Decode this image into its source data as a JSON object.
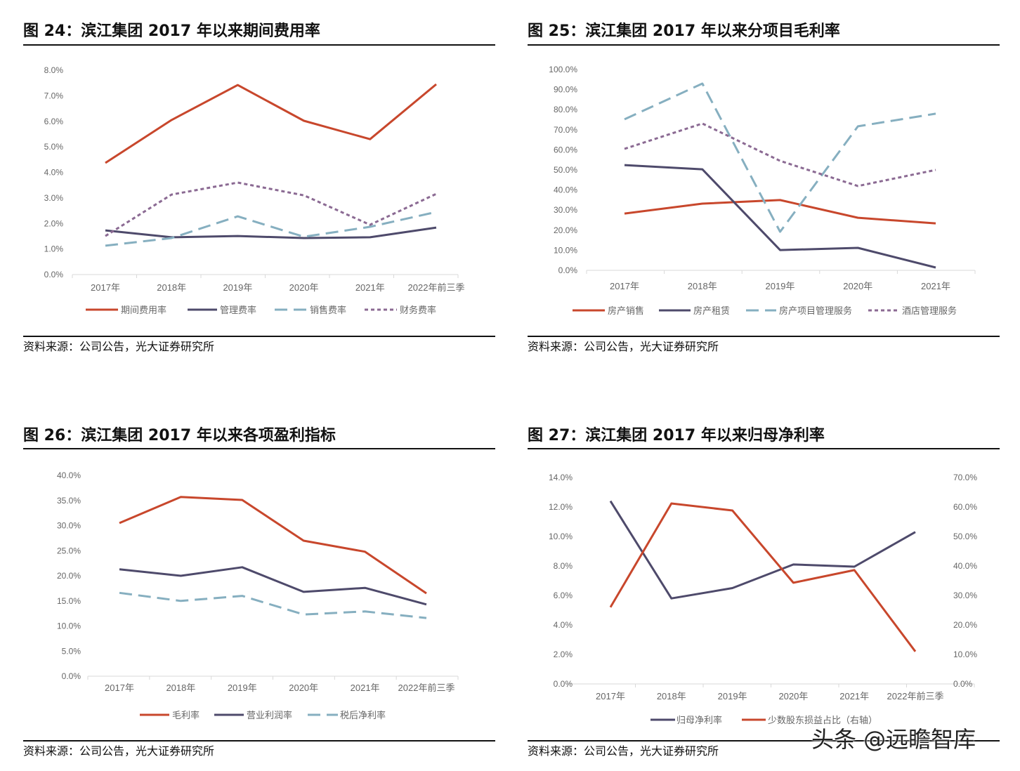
{
  "panels": [
    {
      "title": "图 24：滨江集团 2017 年以来期间费用率",
      "source": "资料来源：公司公告，光大证券研究所"
    },
    {
      "title": "图 25：滨江集团 2017 年以来分项目毛利率",
      "source": "资料来源：公司公告，光大证券研究所"
    },
    {
      "title": "图 26：滨江集团 2017 年以来各项盈利指标",
      "source": "资料来源：公司公告，光大证券研究所"
    },
    {
      "title": "图 27：滨江集团 2017 年以来归母净利率",
      "source": "资料来源：公司公告，光大证券研究所"
    }
  ],
  "watermark": "头条 @远瞻智库",
  "colors": {
    "red": "#C8472C",
    "navy": "#4E4A6B",
    "lightblue": "#86AFC0",
    "purple": "#8B6A93",
    "axis": "#D9D9D9"
  },
  "chart_data": [
    {
      "type": "line",
      "categories": [
        "2017年",
        "2018年",
        "2019年",
        "2020年",
        "2021年",
        "2022年前三季"
      ],
      "yticks": [
        "0.0%",
        "1.0%",
        "2.0%",
        "3.0%",
        "4.0%",
        "5.0%",
        "6.0%",
        "7.0%",
        "8.0%"
      ],
      "ylim": [
        0,
        8
      ],
      "grid": false,
      "legend": "bottom",
      "series": [
        {
          "name": "期间费用率",
          "values": [
            4.37,
            6.05,
            7.42,
            6.02,
            5.3,
            7.45
          ],
          "color": "#C8472C",
          "style": "solid"
        },
        {
          "name": "管理费率",
          "values": [
            1.73,
            1.46,
            1.51,
            1.43,
            1.46,
            1.84
          ],
          "color": "#4E4A6B",
          "style": "solid"
        },
        {
          "name": "销售费率",
          "values": [
            1.13,
            1.43,
            2.28,
            1.48,
            1.87,
            2.45
          ],
          "color": "#86AFC0",
          "style": "dash"
        },
        {
          "name": "财务费率",
          "values": [
            1.51,
            3.13,
            3.6,
            3.1,
            1.95,
            3.16
          ],
          "color": "#8B6A93",
          "style": "dot"
        }
      ]
    },
    {
      "type": "line",
      "categories": [
        "2017年",
        "2018年",
        "2019年",
        "2020年",
        "2021年"
      ],
      "yticks": [
        "0.0%",
        "10.0%",
        "20.0%",
        "30.0%",
        "40.0%",
        "50.0%",
        "60.0%",
        "70.0%",
        "80.0%",
        "90.0%",
        "100.0%"
      ],
      "ylim": [
        0,
        100
      ],
      "grid": false,
      "legend": "bottom",
      "series": [
        {
          "name": "房产销售",
          "values": [
            28.3,
            33.2,
            35.0,
            26.2,
            23.4
          ],
          "color": "#C8472C",
          "style": "solid"
        },
        {
          "name": "房产租赁",
          "values": [
            52.4,
            50.3,
            10.1,
            11.2,
            1.4
          ],
          "color": "#4E4A6B",
          "style": "solid"
        },
        {
          "name": "房产项目管理服务",
          "values": [
            75.2,
            93.0,
            19.2,
            71.7,
            78.0
          ],
          "color": "#86AFC0",
          "style": "dash"
        },
        {
          "name": "酒店管理服务",
          "values": [
            60.5,
            73.1,
            54.5,
            42.0,
            50.0
          ],
          "color": "#8B6A93",
          "style": "dot"
        }
      ]
    },
    {
      "type": "line",
      "categories": [
        "2017年",
        "2018年",
        "2019年",
        "2020年",
        "2021年",
        "2022年前三季"
      ],
      "yticks": [
        "0.0%",
        "5.0%",
        "10.0%",
        "15.0%",
        "20.0%",
        "25.0%",
        "30.0%",
        "35.0%",
        "40.0%"
      ],
      "ylim": [
        0,
        40
      ],
      "grid": false,
      "legend": "bottom",
      "series": [
        {
          "name": "毛利率",
          "values": [
            30.5,
            35.7,
            35.1,
            27.0,
            24.8,
            16.5
          ],
          "color": "#C8472C",
          "style": "solid"
        },
        {
          "name": "营业利润率",
          "values": [
            21.3,
            20.0,
            21.7,
            16.8,
            17.6,
            14.3
          ],
          "color": "#4E4A6B",
          "style": "solid"
        },
        {
          "name": "税后净利率",
          "values": [
            16.6,
            15.0,
            16.0,
            12.3,
            12.9,
            11.6
          ],
          "color": "#86AFC0",
          "style": "dash"
        }
      ]
    },
    {
      "type": "line",
      "categories": [
        "2017年",
        "2018年",
        "2019年",
        "2020年",
        "2021年",
        "2022年前三季"
      ],
      "yticks": [
        "0.0%",
        "2.0%",
        "4.0%",
        "6.0%",
        "8.0%",
        "10.0%",
        "12.0%",
        "14.0%"
      ],
      "ylim": [
        0,
        14
      ],
      "y2ticks": [
        "0.0%",
        "10.0%",
        "20.0%",
        "30.0%",
        "40.0%",
        "50.0%",
        "60.0%",
        "70.0%"
      ],
      "y2lim": [
        0,
        70
      ],
      "grid": false,
      "legend": "bottom",
      "series": [
        {
          "name": "归母净利率",
          "values": [
            12.4,
            5.8,
            6.5,
            8.1,
            7.95,
            10.3
          ],
          "color": "#4E4A6B",
          "style": "solid",
          "axis": "left"
        },
        {
          "name": "少数股东损益占比（右轴）",
          "values": [
            26.0,
            61.2,
            58.8,
            34.3,
            38.6,
            11.0
          ],
          "color": "#C8472C",
          "style": "solid",
          "axis": "right"
        }
      ]
    }
  ]
}
